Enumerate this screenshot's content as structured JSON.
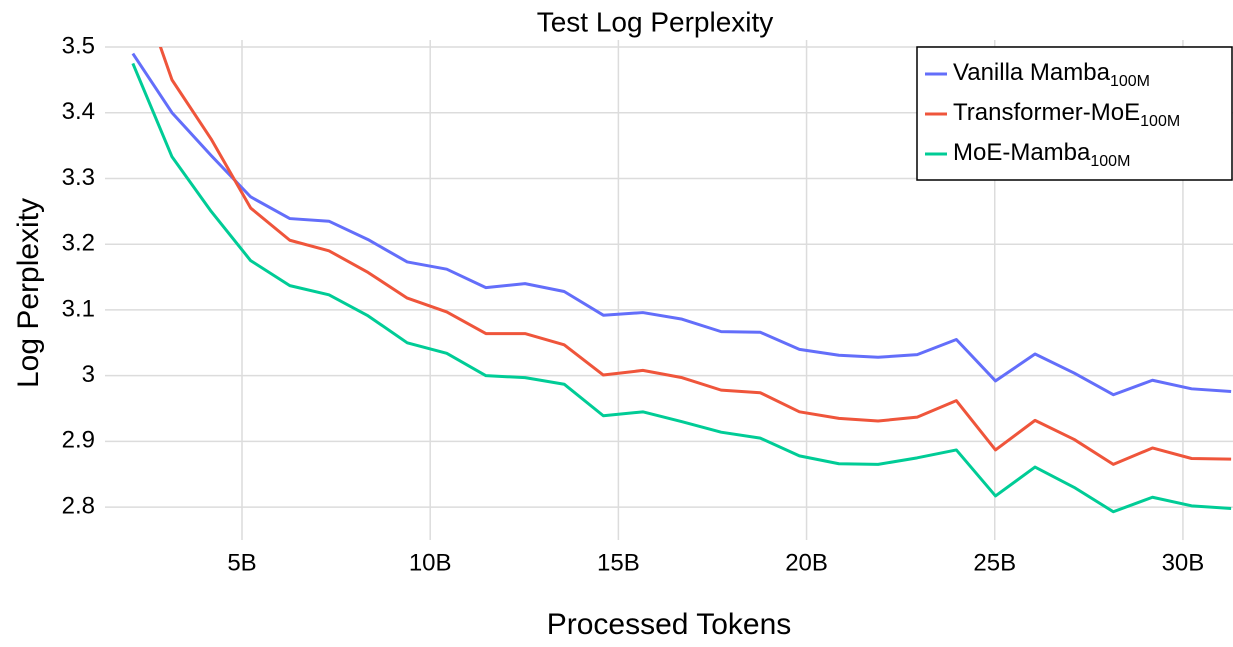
{
  "chart_data": {
    "type": "line",
    "title": "Test Log Perplexity",
    "x_label": "Processed Tokens",
    "y_label": "Log Perplexity",
    "x": [
      2.1,
      3.14,
      4.18,
      5.23,
      6.27,
      7.31,
      8.35,
      9.39,
      10.44,
      11.48,
      12.52,
      13.56,
      14.6,
      15.65,
      16.69,
      17.73,
      18.77,
      19.81,
      20.86,
      21.9,
      22.94,
      23.98,
      25.02,
      26.07,
      27.11,
      28.15,
      29.19,
      30.23,
      31.28
    ],
    "series": [
      {
        "name": "Vanilla Mamba",
        "subscript": "100M",
        "color": "#636efa",
        "values": [
          3.49,
          3.4,
          3.335,
          3.272,
          3.239,
          3.235,
          3.207,
          3.173,
          3.162,
          3.134,
          3.14,
          3.128,
          3.092,
          3.096,
          3.086,
          3.067,
          3.066,
          3.04,
          3.031,
          3.028,
          3.032,
          3.055,
          2.992,
          3.033,
          3.004,
          2.971,
          2.993,
          2.98,
          2.976
        ]
      },
      {
        "name": "Transformer-MoE",
        "subscript": "100M",
        "color": "#ef553b",
        "values": [
          3.62,
          3.45,
          3.36,
          3.255,
          3.206,
          3.19,
          3.157,
          3.118,
          3.097,
          3.064,
          3.064,
          3.047,
          3.001,
          3.008,
          2.997,
          2.978,
          2.974,
          2.945,
          2.935,
          2.931,
          2.937,
          2.962,
          2.887,
          2.932,
          2.903,
          2.865,
          2.89,
          2.874,
          2.873
        ]
      },
      {
        "name": "MoE-Mamba",
        "subscript": "100M",
        "color": "#00cc96",
        "values": [
          3.475,
          3.333,
          3.25,
          3.175,
          3.137,
          3.123,
          3.091,
          3.05,
          3.034,
          3.0,
          2.997,
          2.987,
          2.939,
          2.945,
          2.93,
          2.914,
          2.905,
          2.878,
          2.866,
          2.865,
          2.875,
          2.887,
          2.817,
          2.861,
          2.83,
          2.793,
          2.815,
          2.802,
          2.798
        ]
      }
    ],
    "xlim": [
      1.36,
      31.33
    ],
    "xticks": [
      {
        "value": 5,
        "label": "5B"
      },
      {
        "value": 10,
        "label": "10B"
      },
      {
        "value": 15,
        "label": "15B"
      },
      {
        "value": 20,
        "label": "20B"
      },
      {
        "value": 25,
        "label": "25B"
      },
      {
        "value": 30,
        "label": "30B"
      }
    ],
    "ylim": [
      2.75,
      3.5
    ],
    "yticks": [
      3.5,
      3.4,
      3.3,
      3.2,
      3.1,
      3,
      2.9,
      2.8
    ],
    "grid": true,
    "legend": "top-right"
  }
}
